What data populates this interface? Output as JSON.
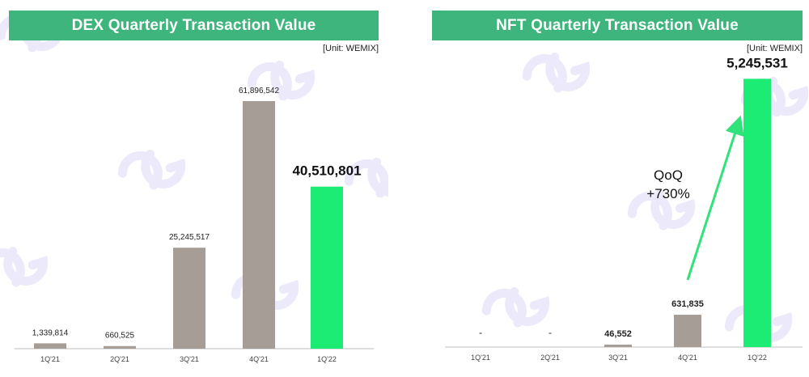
{
  "colors": {
    "title_bg": "#3db57d",
    "bar_past": "#a69d97",
    "bar_current": "#1ceb74",
    "arrow": "#2fe27a",
    "watermark": "#dcd8f6"
  },
  "watermark": {
    "icon": "dg-logo-watermark"
  },
  "chart_data": [
    {
      "type": "bar",
      "title": "DEX Quarterly Transaction Value",
      "unit": "[Unit: WEMIX]",
      "categories": [
        "1Q'21",
        "2Q'21",
        "3Q'21",
        "4Q'21",
        "1Q'22"
      ],
      "values": [
        1339814,
        660525,
        25245517,
        61896542,
        40510801
      ],
      "data_labels": [
        "1,339,814",
        "660,525",
        "25,245,517",
        "61,896,542",
        "40,510,801"
      ],
      "highlight_index": 4,
      "ylim": [
        0,
        72000000
      ],
      "grid": false,
      "legend": "none"
    },
    {
      "type": "bar",
      "title": "NFT Quarterly Transaction Value",
      "unit": "[Unit: WEMIX]",
      "categories": [
        "1Q'21",
        "2Q'21",
        "3Q'21",
        "4Q'21",
        "1Q'22"
      ],
      "values": [
        null,
        null,
        46552,
        631835,
        5245531
      ],
      "data_labels": [
        "-",
        "-",
        "46,552",
        "631,835",
        "5,245,531"
      ],
      "highlight_index": 4,
      "ylim": [
        0,
        5600000
      ],
      "grid": false,
      "legend": "none",
      "annotation": {
        "line1": "QoQ",
        "line2": "+730%"
      }
    }
  ]
}
